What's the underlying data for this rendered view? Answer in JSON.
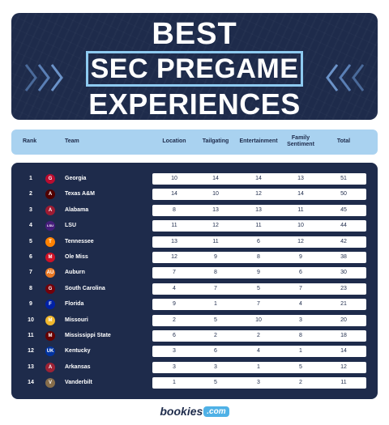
{
  "title": {
    "line1": "BEST",
    "line2": "SEC PREGAME",
    "line3": "EXPERIENCES"
  },
  "columns": {
    "rank": "Rank",
    "team": "Team",
    "location": "Location",
    "tailgating": "Tailgating",
    "entertainment": "Entertainment",
    "family": "Family Sentiment",
    "total": "Total"
  },
  "rows": [
    {
      "rank": "1",
      "team": "Georgia",
      "logo": "G",
      "color": "#ba0c2f",
      "location": "10",
      "tailgating": "14",
      "entertainment": "14",
      "family": "13",
      "total": "51"
    },
    {
      "rank": "2",
      "team": "Texas A&M",
      "logo": "A",
      "color": "#500000",
      "location": "14",
      "tailgating": "10",
      "entertainment": "12",
      "family": "14",
      "total": "50"
    },
    {
      "rank": "3",
      "team": "Alabama",
      "logo": "A",
      "color": "#9e1b32",
      "location": "8",
      "tailgating": "13",
      "entertainment": "13",
      "family": "11",
      "total": "45"
    },
    {
      "rank": "4",
      "team": "LSU",
      "logo": "LSU",
      "color": "#461d7c",
      "location": "11",
      "tailgating": "12",
      "entertainment": "11",
      "family": "10",
      "total": "44"
    },
    {
      "rank": "5",
      "team": "Tennessee",
      "logo": "T",
      "color": "#ff8200",
      "location": "13",
      "tailgating": "11",
      "entertainment": "6",
      "family": "12",
      "total": "42"
    },
    {
      "rank": "6",
      "team": "Ole Miss",
      "logo": "M",
      "color": "#ce1126",
      "location": "12",
      "tailgating": "9",
      "entertainment": "8",
      "family": "9",
      "total": "38"
    },
    {
      "rank": "7",
      "team": "Auburn",
      "logo": "AU",
      "color": "#e87722",
      "location": "7",
      "tailgating": "8",
      "entertainment": "9",
      "family": "6",
      "total": "30"
    },
    {
      "rank": "8",
      "team": "South Carolina",
      "logo": "G",
      "color": "#73000a",
      "location": "4",
      "tailgating": "7",
      "entertainment": "5",
      "family": "7",
      "total": "23"
    },
    {
      "rank": "9",
      "team": "Florida",
      "logo": "F",
      "color": "#0021a5",
      "location": "9",
      "tailgating": "1",
      "entertainment": "7",
      "family": "4",
      "total": "21"
    },
    {
      "rank": "10",
      "team": "Missouri",
      "logo": "M",
      "color": "#f1b82d",
      "location": "2",
      "tailgating": "5",
      "entertainment": "10",
      "family": "3",
      "total": "20"
    },
    {
      "rank": "11",
      "team": "Mississippi State",
      "logo": "M",
      "color": "#660000",
      "location": "6",
      "tailgating": "2",
      "entertainment": "2",
      "family": "8",
      "total": "18"
    },
    {
      "rank": "12",
      "team": "Kentucky",
      "logo": "UK",
      "color": "#0033a0",
      "location": "3",
      "tailgating": "6",
      "entertainment": "4",
      "family": "1",
      "total": "14"
    },
    {
      "rank": "13",
      "team": "Arkansas",
      "logo": "A",
      "color": "#9d2235",
      "location": "3",
      "tailgating": "3",
      "entertainment": "1",
      "family": "5",
      "total": "12"
    },
    {
      "rank": "14",
      "team": "Vanderbilt",
      "logo": "V",
      "color": "#866d4b",
      "location": "1",
      "tailgating": "5",
      "entertainment": "3",
      "family": "2",
      "total": "11"
    }
  ],
  "brand": {
    "name": "bookies",
    "suffix": ".com"
  },
  "colors": {
    "navy": "#1e2b4b",
    "header_blue": "#a9d2f0",
    "accent_blue": "#8ecaf0",
    "brand_blue": "#4fb1e6"
  }
}
